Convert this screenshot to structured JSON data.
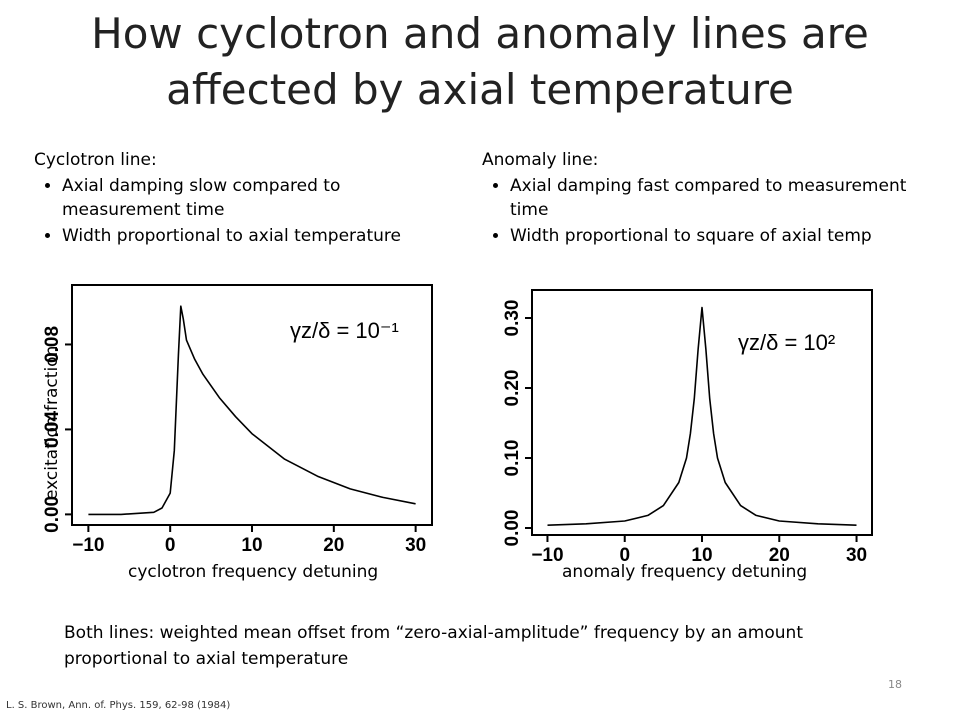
{
  "slide": {
    "title_line1": "How cyclotron and anomaly lines are",
    "title_line2": "affected by axial temperature",
    "left_column": {
      "heading": "Cyclotron line:",
      "bullets": [
        "Axial damping slow compared to measurement time",
        "Width proportional to axial temperature"
      ]
    },
    "right_column": {
      "heading": "Anomaly line:",
      "bullets": [
        "Axial damping fast compared to measurement time",
        "Width proportional to square of axial temp"
      ]
    },
    "y_axis_label": "excitation fraction",
    "left_plot_xlabel": "cyclotron frequency detuning",
    "right_plot_xlabel": "anomaly frequency detuning",
    "left_plot_annotation": "γz/δ = 10⁻¹",
    "right_plot_annotation": "γz/δ = 10²",
    "footer": "Both lines: weighted mean offset from “zero-axial-amplitude” frequency by an amount proportional to axial temperature",
    "page_number": "18",
    "citation": "L. S. Brown, Ann. of. Phys. 159, 62-98 (1984)"
  },
  "chart_data": [
    {
      "type": "line",
      "annotation": "γz/δ = 10⁻¹",
      "xlabel": "",
      "ylabel": "",
      "xlim": [
        -12,
        32
      ],
      "ylim": [
        -0.005,
        0.108
      ],
      "xticks": [
        -10,
        0,
        10,
        20,
        30
      ],
      "yticks": [
        0.0,
        0.04,
        0.08
      ],
      "ytick_labels": [
        "0.00",
        "0.04",
        "0.08"
      ],
      "xtick_labels": [
        "−10",
        "0",
        "10",
        "20",
        "30"
      ],
      "series": [
        {
          "x": [
            -10,
            -6,
            -2,
            -1,
            0,
            0.5,
            1.0,
            1.3,
            1.6,
            2.0,
            3,
            4,
            6,
            8,
            10,
            14,
            18,
            22,
            26,
            30
          ],
          "y": [
            0.0,
            0.0,
            0.001,
            0.003,
            0.01,
            0.03,
            0.075,
            0.098,
            0.092,
            0.082,
            0.073,
            0.066,
            0.055,
            0.046,
            0.038,
            0.026,
            0.018,
            0.012,
            0.008,
            0.005
          ]
        }
      ]
    },
    {
      "type": "line",
      "annotation": "γz/δ = 10²",
      "xlabel": "",
      "ylabel": "",
      "xlim": [
        -12,
        32
      ],
      "ylim": [
        -0.01,
        0.34
      ],
      "xticks": [
        -10,
        0,
        10,
        20,
        30
      ],
      "yticks": [
        0.0,
        0.1,
        0.2,
        0.3
      ],
      "ytick_labels": [
        "0.00",
        "0.10",
        "0.20",
        "0.30"
      ],
      "xtick_labels": [
        "−10",
        "0",
        "10",
        "20",
        "30"
      ],
      "series": [
        {
          "x": [
            -10,
            -5,
            0,
            3,
            5,
            7,
            8,
            8.5,
            9,
            9.5,
            10,
            10.5,
            11,
            11.5,
            12,
            13,
            15,
            17,
            20,
            25,
            30
          ],
          "y": [
            0.004,
            0.006,
            0.01,
            0.018,
            0.032,
            0.065,
            0.1,
            0.135,
            0.185,
            0.255,
            0.315,
            0.255,
            0.185,
            0.135,
            0.1,
            0.065,
            0.032,
            0.018,
            0.01,
            0.006,
            0.004
          ]
        }
      ]
    }
  ]
}
